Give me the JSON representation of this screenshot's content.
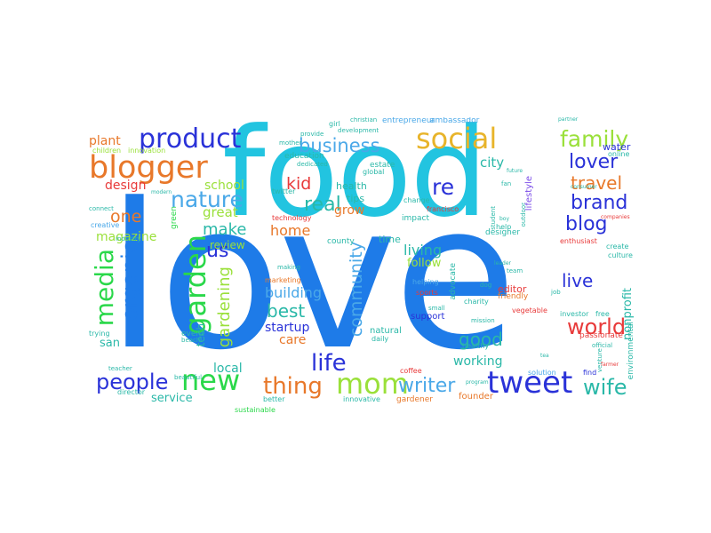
{
  "colors": {
    "blue": "#1e7be8",
    "cyan": "#22c4e0",
    "navy": "#2a32d8",
    "orange": "#e8782a",
    "gold": "#e8b42a",
    "green": "#2ad84a",
    "lime": "#9ae03a",
    "teal": "#2ab8a8",
    "red": "#e83a3a",
    "sky": "#4aa8e8",
    "purple": "#7a4ae8"
  },
  "words": [
    {
      "id": "love",
      "text": "love",
      "color": "blue"
    },
    {
      "id": "food",
      "text": "food",
      "color": "cyan"
    },
    {
      "id": "blogger",
      "text": "blogger",
      "color": "orange"
    },
    {
      "id": "product",
      "text": "product",
      "color": "navy"
    },
    {
      "id": "social",
      "text": "social",
      "color": "gold"
    },
    {
      "id": "business",
      "text": "business",
      "color": "sky"
    },
    {
      "id": "family",
      "text": "family",
      "color": "lime"
    },
    {
      "id": "lover",
      "text": "lover",
      "color": "navy"
    },
    {
      "id": "travel",
      "text": "travel",
      "color": "orange"
    },
    {
      "id": "brand",
      "text": "brand",
      "color": "navy"
    },
    {
      "id": "blog",
      "text": "blog",
      "color": "navy"
    },
    {
      "id": "nature",
      "text": "nature",
      "color": "sky"
    },
    {
      "id": "garden",
      "text": "garden",
      "color": "green"
    },
    {
      "id": "media",
      "text": "media",
      "color": "green"
    },
    {
      "id": "organic",
      "text": "organic",
      "color": "blue"
    },
    {
      "id": "kid",
      "text": "kid",
      "color": "red"
    },
    {
      "id": "re",
      "text": "re",
      "color": "navy"
    },
    {
      "id": "real",
      "text": "real",
      "color": "teal"
    },
    {
      "id": "make",
      "text": "make",
      "color": "teal"
    },
    {
      "id": "home",
      "text": "home",
      "color": "orange"
    },
    {
      "id": "us",
      "text": "us",
      "color": "navy"
    },
    {
      "id": "one",
      "text": "one",
      "color": "orange"
    },
    {
      "id": "great",
      "text": "great",
      "color": "lime"
    },
    {
      "id": "school",
      "text": "school",
      "color": "lime"
    },
    {
      "id": "design",
      "text": "design",
      "color": "red"
    },
    {
      "id": "plant",
      "text": "plant",
      "color": "orange"
    },
    {
      "id": "city",
      "text": "city",
      "color": "teal"
    },
    {
      "id": "grow",
      "text": "grow",
      "color": "orange"
    },
    {
      "id": "world",
      "text": "world",
      "color": "red"
    },
    {
      "id": "live",
      "text": "live",
      "color": "navy"
    },
    {
      "id": "good",
      "text": "good",
      "color": "teal"
    },
    {
      "id": "living",
      "text": "living",
      "color": "teal"
    },
    {
      "id": "follow",
      "text": "follow",
      "color": "lime"
    },
    {
      "id": "community",
      "text": "community",
      "color": "sky"
    },
    {
      "id": "best",
      "text": "best",
      "color": "teal"
    },
    {
      "id": "building",
      "text": "building",
      "color": "sky"
    },
    {
      "id": "startup",
      "text": "startup",
      "color": "navy"
    },
    {
      "id": "care",
      "text": "care",
      "color": "orange"
    },
    {
      "id": "gardening",
      "text": "gardening",
      "color": "lime"
    },
    {
      "id": "working",
      "text": "working",
      "color": "teal"
    },
    {
      "id": "life",
      "text": "life",
      "color": "navy"
    },
    {
      "id": "people",
      "text": "people",
      "color": "navy"
    },
    {
      "id": "new",
      "text": "new",
      "color": "green"
    },
    {
      "id": "thing",
      "text": "thing",
      "color": "orange"
    },
    {
      "id": "mom",
      "text": "mom",
      "color": "lime"
    },
    {
      "id": "writer",
      "text": "writer",
      "color": "sky"
    },
    {
      "id": "tweet",
      "text": "tweet",
      "color": "navy"
    },
    {
      "id": "wife",
      "text": "wife",
      "color": "teal"
    },
    {
      "id": "magazine",
      "text": "magazine",
      "color": "lime"
    },
    {
      "id": "review",
      "text": "review",
      "color": "lime"
    },
    {
      "id": "local",
      "text": "local",
      "color": "teal"
    },
    {
      "id": "service",
      "text": "service",
      "color": "teal"
    },
    {
      "id": "san",
      "text": "san",
      "color": "teal"
    },
    {
      "id": "tech",
      "text": "tech",
      "color": "teal"
    },
    {
      "id": "editor",
      "text": "editor",
      "color": "red"
    },
    {
      "id": "passionate",
      "text": "passionate",
      "color": "red"
    },
    {
      "id": "nonprofit",
      "text": "nonprofit",
      "color": "teal"
    },
    {
      "id": "water",
      "text": "water",
      "color": "navy"
    },
    {
      "id": "health",
      "text": "health",
      "color": "teal"
    },
    {
      "id": "tips",
      "text": "tips",
      "color": "teal"
    },
    {
      "id": "education",
      "text": "education",
      "color": "teal"
    },
    {
      "id": "support",
      "text": "support",
      "color": "navy"
    },
    {
      "id": "marketing",
      "text": "marketing",
      "color": "orange"
    },
    {
      "id": "event",
      "text": "event",
      "color": "teal"
    },
    {
      "id": "time",
      "text": "time",
      "color": "teal"
    },
    {
      "id": "lifestyle",
      "text": "lifestyle",
      "color": "purple"
    },
    {
      "id": "friendly",
      "text": "friendly",
      "color": "orange"
    },
    {
      "id": "designer",
      "text": "designer",
      "color": "teal"
    },
    {
      "id": "technology",
      "text": "technology",
      "color": "red"
    },
    {
      "id": "impact",
      "text": "impact",
      "color": "teal"
    },
    {
      "id": "francisco",
      "text": "francisco",
      "color": "red"
    },
    {
      "id": "founder",
      "text": "founder",
      "color": "orange"
    },
    {
      "id": "innovative",
      "text": "innovative",
      "color": "teal"
    },
    {
      "id": "gardener",
      "text": "gardener",
      "color": "orange"
    },
    {
      "id": "entrepreneur",
      "text": "entrepreneur",
      "color": "sky"
    },
    {
      "id": "ambassador",
      "text": "ambassador",
      "color": "sky"
    },
    {
      "id": "estate",
      "text": "estate",
      "color": "teal"
    },
    {
      "id": "help",
      "text": "help",
      "color": "teal"
    },
    {
      "id": "natural",
      "text": "natural",
      "color": "teal"
    },
    {
      "id": "sports",
      "text": "sports",
      "color": "red"
    },
    {
      "id": "creative",
      "text": "creative",
      "color": "sky"
    },
    {
      "id": "culture",
      "text": "culture",
      "color": "teal"
    },
    {
      "id": "create",
      "text": "create",
      "color": "teal"
    },
    {
      "id": "charity",
      "text": "charity",
      "color": "teal"
    },
    {
      "id": "mission",
      "text": "mission",
      "color": "teal"
    },
    {
      "id": "solution",
      "text": "solution",
      "color": "sky"
    },
    {
      "id": "sustainable",
      "text": "sustainable",
      "color": "green"
    },
    {
      "id": "children",
      "text": "children",
      "color": "lime"
    },
    {
      "id": "innovation",
      "text": "innovation",
      "color": "lime"
    },
    {
      "id": "county",
      "text": "county",
      "color": "teal"
    },
    {
      "id": "vegetable",
      "text": "vegetable",
      "color": "red"
    },
    {
      "id": "daily",
      "text": "daily",
      "color": "teal"
    },
    {
      "id": "healthy",
      "text": "healthy",
      "color": "teal"
    },
    {
      "id": "better",
      "text": "better",
      "color": "teal"
    },
    {
      "id": "coffee",
      "text": "coffee",
      "color": "red"
    },
    {
      "id": "director",
      "text": "director",
      "color": "teal"
    },
    {
      "id": "beautiful",
      "text": "beautiful",
      "color": "teal"
    },
    {
      "id": "teacher",
      "text": "teacher",
      "color": "teal"
    },
    {
      "id": "global",
      "text": "global",
      "color": "teal"
    },
    {
      "id": "green",
      "text": "green",
      "color": "green"
    },
    {
      "id": "change",
      "text": "change",
      "color": "teal"
    },
    {
      "id": "helping",
      "text": "helping",
      "color": "sky"
    },
    {
      "id": "making",
      "text": "making",
      "color": "teal"
    },
    {
      "id": "provide",
      "text": "provide",
      "color": "teal"
    },
    {
      "id": "dedicated",
      "text": "dedicated",
      "color": "teal"
    },
    {
      "id": "development",
      "text": "development",
      "color": "teal"
    },
    {
      "id": "girl",
      "text": "girl",
      "color": "teal"
    },
    {
      "id": "christian",
      "text": "christian",
      "color": "teal"
    },
    {
      "id": "official",
      "text": "official",
      "color": "teal"
    },
    {
      "id": "online",
      "text": "online",
      "color": "teal"
    },
    {
      "id": "enthusiast",
      "text": "enthusiast",
      "color": "red"
    },
    {
      "id": "outdoor",
      "text": "outdoor",
      "color": "teal"
    },
    {
      "id": "small",
      "text": "small",
      "color": "teal"
    },
    {
      "id": "future",
      "text": "future",
      "color": "teal"
    },
    {
      "id": "student",
      "text": "student",
      "color": "teal"
    },
    {
      "id": "advocate",
      "text": "advocate",
      "color": "teal"
    },
    {
      "id": "trying",
      "text": "trying",
      "color": "teal"
    },
    {
      "id": "industry",
      "text": "industry",
      "color": "teal"
    },
    {
      "id": "connect",
      "text": "connect",
      "color": "teal"
    },
    {
      "id": "modern",
      "text": "modern",
      "color": "teal"
    },
    {
      "id": "twitter",
      "text": "twitter",
      "color": "teal"
    },
    {
      "id": "mother",
      "text": "mother",
      "color": "teal"
    },
    {
      "id": "fan",
      "text": "fan",
      "color": "teal"
    },
    {
      "id": "team",
      "text": "team",
      "color": "teal"
    },
    {
      "id": "beach",
      "text": "beach",
      "color": "teal"
    },
    {
      "id": "companies",
      "text": "companies",
      "color": "red"
    },
    {
      "id": "consumer",
      "text": "consumer",
      "color": "teal"
    },
    {
      "id": "partner",
      "text": "partner",
      "color": "teal"
    },
    {
      "id": "leader",
      "text": "leader",
      "color": "teal"
    },
    {
      "id": "program",
      "text": "program",
      "color": "teal"
    },
    {
      "id": "venture",
      "text": "venture",
      "color": "teal"
    },
    {
      "id": "farmer",
      "text": "farmer",
      "color": "red"
    },
    {
      "id": "find",
      "text": "find",
      "color": "navy"
    },
    {
      "id": "job",
      "text": "job",
      "color": "teal"
    },
    {
      "id": "boy",
      "text": "boy",
      "color": "teal"
    },
    {
      "id": "tea",
      "text": "tea",
      "color": "teal"
    },
    {
      "id": "dog",
      "text": "dog",
      "color": "teal"
    },
    {
      "id": "investor",
      "text": "investor",
      "color": "teal"
    },
    {
      "id": "free",
      "text": "free",
      "color": "teal"
    },
    {
      "id": "environmental",
      "text": "environmental",
      "color": "teal"
    }
  ]
}
